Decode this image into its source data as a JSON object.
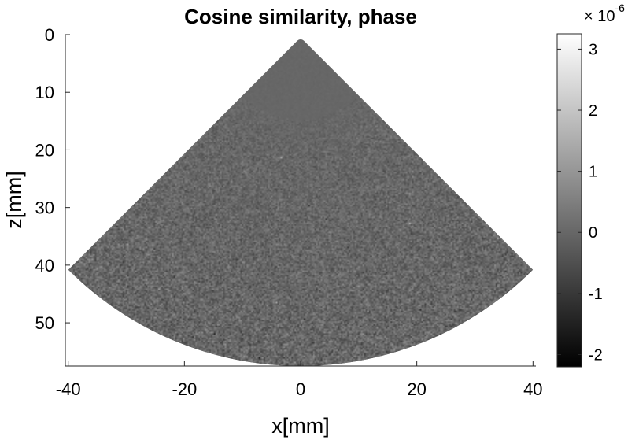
{
  "chart_data": {
    "type": "heatmap",
    "title": "Cosine similarity, phase",
    "xlabel": "x[mm]",
    "ylabel": "z[mm]",
    "xlim": [
      -40.5,
      40.5
    ],
    "ylim": [
      0,
      57.5
    ],
    "y_reversed": true,
    "x_ticks": [
      -40,
      -20,
      0,
      20,
      40
    ],
    "x_tick_labels": [
      "-40",
      "-20",
      "0",
      "20",
      "40"
    ],
    "y_ticks": [
      0,
      10,
      20,
      30,
      40,
      50
    ],
    "y_tick_labels": [
      "0",
      "10",
      "20",
      "30",
      "40",
      "50"
    ],
    "colormap": "gray",
    "colorbar": {
      "range": [
        -2.2e-06,
        3.25e-06
      ],
      "ticks": [
        -2,
        -1,
        0,
        1,
        2,
        3
      ],
      "tick_labels": [
        "-2",
        "-1",
        "0",
        "1",
        "2",
        "3"
      ],
      "exponent_base": "× 10",
      "exponent": "-6"
    },
    "sector": {
      "apex_z": 0.5,
      "max_depth": 57,
      "half_angle_deg": 45,
      "min_radius": 0.8,
      "background_value": 0
    }
  }
}
